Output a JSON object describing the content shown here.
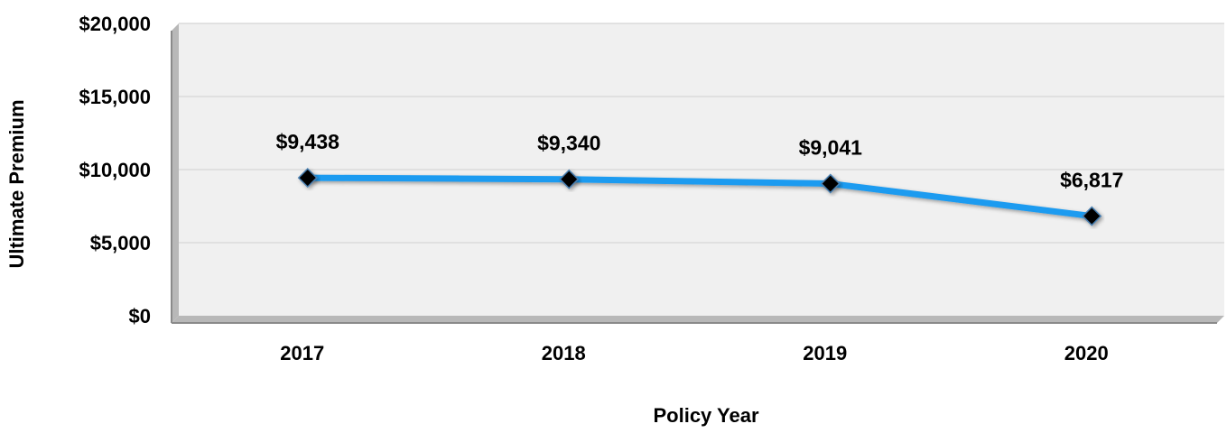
{
  "chart_data": {
    "type": "line",
    "title": "",
    "xlabel": "Policy Year",
    "ylabel": "Ultimate Premium",
    "categories": [
      "2017",
      "2018",
      "2019",
      "2020"
    ],
    "values": [
      9438,
      9340,
      9041,
      6817
    ],
    "data_labels": [
      "$9,438",
      "$9,340",
      "$9,041",
      "$6,817"
    ],
    "y_ticks": [
      0,
      5000,
      10000,
      15000,
      20000
    ],
    "y_tick_labels": [
      "$0",
      "$5,000",
      "$10,000",
      "$15,000",
      "$20,000"
    ],
    "ylim": [
      0,
      20000
    ],
    "grid": true,
    "legend": "none",
    "colors": {
      "line": "#1E9BF0",
      "marker": "#000000",
      "plot_background": "#F0F0F0",
      "grid": "#DADADA",
      "axis": "#8A8A8A"
    }
  }
}
